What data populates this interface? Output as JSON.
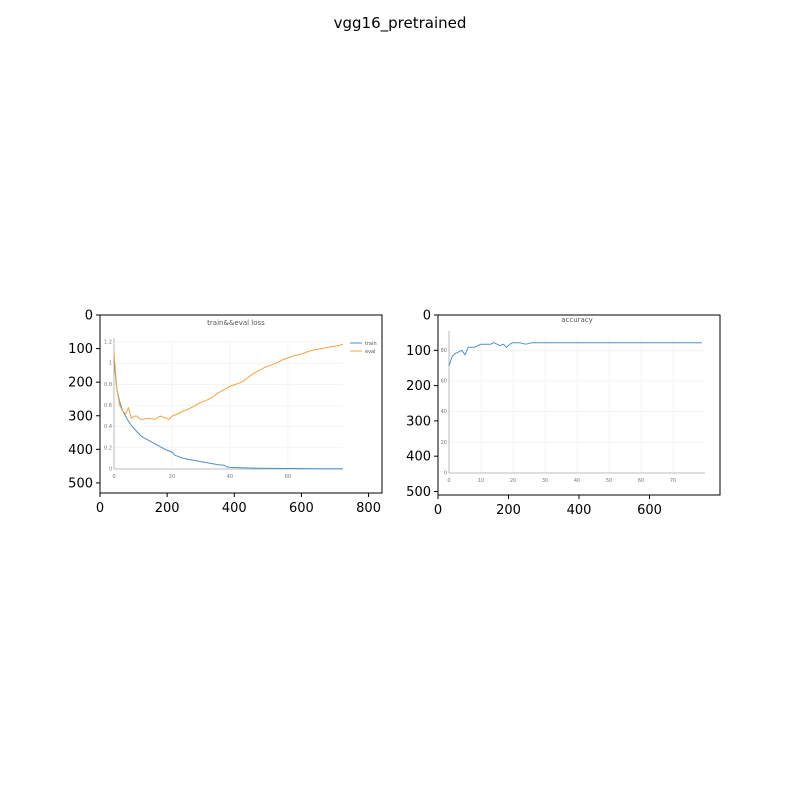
{
  "figure": {
    "title": "vgg16_pretrained",
    "colors": {
      "train": "#4e8fc5",
      "eval": "#f0a445",
      "axis": "#000000",
      "inner_axis": "#aaaaaa"
    }
  },
  "chart_data": [
    {
      "type": "image",
      "xlim": [
        0,
        840
      ],
      "ylim": [
        530,
        0
      ],
      "x_ticks": [
        0,
        200,
        400,
        600,
        800
      ],
      "y_ticks": [
        0,
        100,
        200,
        300,
        400,
        500
      ],
      "embedded_chart": {
        "type": "line",
        "title": "train&&eval loss",
        "x_ticks": [
          0,
          20,
          40,
          60
        ],
        "y_ticks": [
          0,
          0.2,
          0.4,
          0.6,
          0.8,
          1,
          1.2
        ],
        "xlim": [
          0,
          79
        ],
        "ylim": [
          0,
          1.2
        ],
        "legend": {
          "position": "right",
          "entries": [
            "train",
            "eval"
          ]
        },
        "series": [
          {
            "name": "train",
            "x": [
              0,
              1,
              2,
              3,
              4,
              5,
              6,
              7,
              8,
              9,
              10,
              12,
              14,
              16,
              18,
              20,
              21,
              22,
              24,
              26,
              28,
              30,
              32,
              34,
              36,
              38,
              39,
              40,
              45,
              50,
              55,
              60,
              65,
              70,
              75,
              79
            ],
            "y": [
              1.02,
              0.75,
              0.63,
              0.55,
              0.5,
              0.45,
              0.41,
              0.38,
              0.35,
              0.32,
              0.3,
              0.27,
              0.24,
              0.21,
              0.18,
              0.16,
              0.13,
              0.12,
              0.1,
              0.09,
              0.08,
              0.07,
              0.06,
              0.05,
              0.04,
              0.035,
              0.02,
              0.015,
              0.01,
              0.008,
              0.006,
              0.005,
              0.004,
              0.003,
              0.003,
              0.002
            ]
          },
          {
            "name": "eval",
            "x": [
              0,
              1,
              2,
              3,
              4,
              5,
              6,
              7,
              8,
              9,
              10,
              12,
              14,
              16,
              18,
              19,
              20,
              22,
              24,
              26,
              28,
              30,
              32,
              34,
              36,
              38,
              40,
              42,
              44,
              46,
              48,
              50,
              52,
              54,
              56,
              58,
              60,
              62,
              64,
              66,
              68,
              70,
              72,
              74,
              76,
              78,
              79
            ],
            "y": [
              1.1,
              0.75,
              0.6,
              0.55,
              0.52,
              0.58,
              0.48,
              0.5,
              0.5,
              0.47,
              0.47,
              0.48,
              0.47,
              0.5,
              0.48,
              0.47,
              0.5,
              0.52,
              0.55,
              0.57,
              0.6,
              0.63,
              0.65,
              0.68,
              0.72,
              0.75,
              0.78,
              0.8,
              0.82,
              0.86,
              0.9,
              0.93,
              0.96,
              0.98,
              1,
              1.03,
              1.05,
              1.07,
              1.08,
              1.1,
              1.12,
              1.13,
              1.14,
              1.15,
              1.16,
              1.17,
              1.18
            ]
          }
        ]
      }
    },
    {
      "type": "image",
      "xlim": [
        0,
        800
      ],
      "ylim": [
        510,
        0
      ],
      "x_ticks": [
        0,
        200,
        400,
        600
      ],
      "y_ticks": [
        0,
        100,
        200,
        300,
        400,
        500
      ],
      "embedded_chart": {
        "type": "line",
        "title": "accuracy",
        "x_ticks": [
          0,
          10,
          20,
          30,
          40,
          50,
          60,
          70
        ],
        "y_ticks": [
          0,
          20,
          40,
          60,
          80
        ],
        "xlim": [
          0,
          80
        ],
        "ylim": [
          0,
          90
        ],
        "series": [
          {
            "name": "accuracy",
            "x": [
              0,
              1,
              2,
              3,
              4,
              5,
              6,
              7,
              8,
              9,
              10,
              11,
              12,
              13,
              14,
              15,
              16,
              17,
              18,
              19,
              20,
              22,
              24,
              26,
              28,
              30,
              35,
              40,
              45,
              50,
              55,
              60,
              65,
              70,
              75,
              79
            ],
            "y": [
              70,
              76,
              78,
              79,
              80,
              77,
              82,
              82,
              82,
              83,
              84,
              84,
              84,
              84,
              85,
              84,
              83,
              84,
              82,
              84,
              85,
              85,
              84,
              85,
              85,
              85,
              85,
              85,
              85,
              85,
              85,
              85,
              85,
              85,
              85,
              85
            ]
          }
        ]
      }
    }
  ]
}
